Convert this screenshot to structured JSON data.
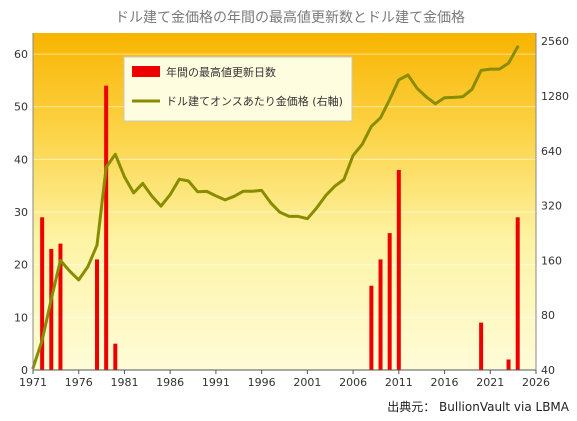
{
  "chart_data": {
    "type": "bar+line",
    "title": "ドル建て金価格の年間の最高値更新数とドル建て金価格",
    "source": "出典元： BullionVault via LBMA",
    "legend_position": "top-left",
    "grid": "horizontal",
    "x_ticks": [
      "1971",
      "1976",
      "1981",
      "1986",
      "1991",
      "1996",
      "2001",
      "2006",
      "2011",
      "2016",
      "2021",
      "2026"
    ],
    "x_range": [
      1971,
      2026
    ],
    "left_axis": {
      "ticks": [
        "0",
        "10",
        "20",
        "30",
        "40",
        "50",
        "60"
      ],
      "range": [
        0,
        64
      ],
      "scale": "linear"
    },
    "right_axis": {
      "ticks": [
        "40",
        "80",
        "160",
        "320",
        "640",
        "1280",
        "2560"
      ],
      "range": [
        40,
        2840
      ],
      "scale": "log2"
    },
    "series": [
      {
        "name": "年間の最高値更新日数",
        "type": "bar",
        "axis": "left",
        "color": "#ee0000",
        "points": [
          [
            1972,
            29
          ],
          [
            1973,
            23
          ],
          [
            1974,
            24
          ],
          [
            1978,
            21
          ],
          [
            1979,
            54
          ],
          [
            1980,
            5
          ],
          [
            2008,
            16
          ],
          [
            2009,
            21
          ],
          [
            2010,
            26
          ],
          [
            2011,
            38
          ],
          [
            2020,
            9
          ],
          [
            2023,
            2
          ],
          [
            2024,
            29
          ]
        ]
      },
      {
        "name": "ドル建てオンスあたり金価格 (右軸)",
        "type": "line",
        "axis": "right",
        "color": "#8a8c00",
        "points": [
          [
            1971,
            41
          ],
          [
            1972,
            58
          ],
          [
            1973,
            98
          ],
          [
            1974,
            160
          ],
          [
            1975,
            140
          ],
          [
            1976,
            125
          ],
          [
            1977,
            148
          ],
          [
            1978,
            194
          ],
          [
            1979,
            520
          ],
          [
            1980,
            612
          ],
          [
            1981,
            460
          ],
          [
            1982,
            376
          ],
          [
            1983,
            424
          ],
          [
            1984,
            361
          ],
          [
            1985,
            318
          ],
          [
            1986,
            368
          ],
          [
            1987,
            447
          ],
          [
            1988,
            437
          ],
          [
            1989,
            381
          ],
          [
            1990,
            383
          ],
          [
            1991,
            362
          ],
          [
            1992,
            344
          ],
          [
            1993,
            360
          ],
          [
            1994,
            384
          ],
          [
            1995,
            384
          ],
          [
            1996,
            388
          ],
          [
            1997,
            331
          ],
          [
            1998,
            294
          ],
          [
            1999,
            279
          ],
          [
            2000,
            279
          ],
          [
            2001,
            271
          ],
          [
            2002,
            310
          ],
          [
            2003,
            363
          ],
          [
            2004,
            409
          ],
          [
            2005,
            445
          ],
          [
            2006,
            604
          ],
          [
            2007,
            695
          ],
          [
            2008,
            872
          ],
          [
            2009,
            972
          ],
          [
            2010,
            1225
          ],
          [
            2011,
            1572
          ],
          [
            2012,
            1669
          ],
          [
            2013,
            1411
          ],
          [
            2014,
            1266
          ],
          [
            2015,
            1160
          ],
          [
            2016,
            1251
          ],
          [
            2017,
            1257
          ],
          [
            2018,
            1268
          ],
          [
            2019,
            1393
          ],
          [
            2020,
            1770
          ],
          [
            2021,
            1799
          ],
          [
            2022,
            1800
          ],
          [
            2023,
            1940
          ],
          [
            2024,
            2386
          ]
        ]
      }
    ]
  }
}
